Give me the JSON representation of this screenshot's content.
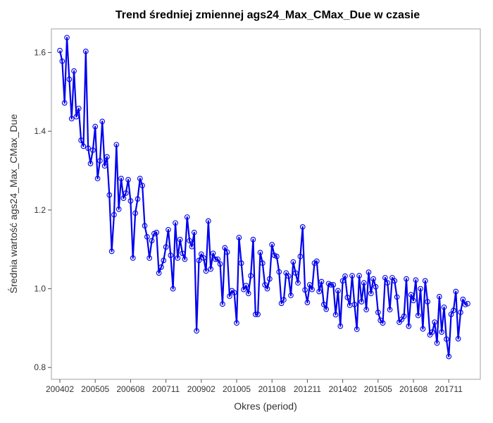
{
  "chart_data": {
    "type": "line",
    "title": "Trend średniej zmiennej ags24_Max_CMax_Due w czasie",
    "xlabel": "Okres (period)",
    "ylabel": "Średnia wartość ags24_Max_CMax_Due",
    "ylim": [
      0.77,
      1.66
    ],
    "yticks": [
      0.8,
      1.0,
      1.2,
      1.4,
      1.6
    ],
    "ytick_labels": [
      "0.8",
      "1.0",
      "1.2",
      "1.4",
      "1.6"
    ],
    "xtick_labels": [
      "200402",
      "200505",
      "200608",
      "200711",
      "200902",
      "201005",
      "201108",
      "201211",
      "201402",
      "201505",
      "201608",
      "201711"
    ],
    "grid": false,
    "legend": "none",
    "colors": {
      "line": "#0000ee",
      "marker": "#0000ee"
    },
    "series": [
      {
        "values": [
          1.605,
          1.578,
          1.472,
          1.638,
          1.532,
          1.432,
          1.553,
          1.437,
          1.458,
          1.377,
          1.362,
          1.603,
          1.357,
          1.318,
          1.352,
          1.412,
          1.28,
          1.325,
          1.425,
          1.312,
          1.335,
          1.238,
          1.095,
          1.188,
          1.366,
          1.202,
          1.28,
          1.23,
          1.243,
          1.277,
          1.223,
          1.078,
          1.192,
          1.228,
          1.28,
          1.262,
          1.16,
          1.132,
          1.078,
          1.122,
          1.14,
          1.143,
          1.04,
          1.055,
          1.072,
          1.106,
          1.15,
          1.085,
          1.0,
          1.167,
          1.078,
          1.125,
          1.09,
          1.075,
          1.182,
          1.122,
          1.107,
          1.143,
          0.893,
          1.072,
          1.088,
          1.078,
          1.045,
          1.172,
          1.05,
          1.09,
          1.075,
          1.075,
          1.063,
          0.961,
          1.104,
          1.093,
          0.981,
          0.995,
          0.99,
          0.913,
          1.13,
          1.065,
          0.998,
          1.008,
          0.988,
          1.033,
          1.125,
          0.935,
          0.935,
          1.092,
          1.065,
          1.01,
          1.0,
          1.025,
          1.112,
          1.085,
          1.082,
          1.043,
          0.963,
          0.972,
          1.04,
          1.032,
          0.983,
          1.068,
          1.04,
          1.015,
          1.082,
          1.157,
          0.997,
          0.965,
          1.01,
          0.998,
          1.065,
          1.07,
          0.993,
          1.018,
          0.96,
          0.948,
          1.013,
          1.01,
          1.01,
          0.934,
          0.995,
          0.905,
          1.02,
          1.032,
          0.978,
          0.958,
          1.033,
          0.96,
          0.897,
          1.033,
          0.967,
          1.015,
          0.947,
          1.042,
          0.988,
          1.025,
          1.005,
          0.94,
          0.92,
          0.913,
          1.028,
          1.015,
          0.947,
          1.028,
          1.02,
          0.979,
          0.915,
          0.922,
          0.93,
          1.025,
          0.905,
          0.985,
          0.97,
          1.022,
          0.932,
          1.0,
          0.898,
          1.02,
          0.967,
          0.883,
          0.89,
          0.915,
          0.862,
          0.98,
          0.89,
          0.953,
          0.872,
          0.828,
          0.935,
          0.945,
          0.993,
          0.873,
          0.94,
          0.973,
          0.96,
          0.962
        ]
      }
    ]
  }
}
